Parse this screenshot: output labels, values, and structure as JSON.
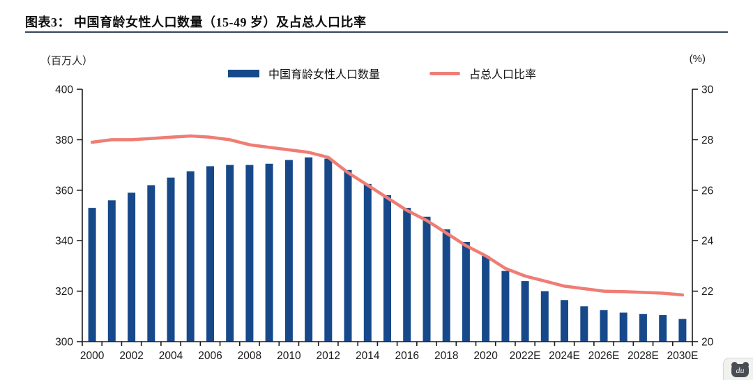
{
  "figure": {
    "title": "图表3：  中国育龄女性人口数量（15-49 岁）及占总人口比率",
    "left_unit": "（百万人）",
    "right_unit": "(%)",
    "watermark_text": "du"
  },
  "legend": {
    "bars": {
      "label": "中国育龄女性人口数量",
      "color": "#17498A"
    },
    "line": {
      "label": "占总人口比率",
      "color": "#EF7D74"
    }
  },
  "chart_data": {
    "type": "bar",
    "subtype": "bar+line dual-axis combo",
    "title": "中国育龄女性人口数量（15-49 岁）及占总人口比率",
    "categories": [
      "2000",
      "2001",
      "2002",
      "2003",
      "2004",
      "2005",
      "2006",
      "2007",
      "2008",
      "2009",
      "2010",
      "2011",
      "2012",
      "2013",
      "2014",
      "2015",
      "2016",
      "2017",
      "2018",
      "2019",
      "2020",
      "2021",
      "2022E",
      "2023E",
      "2024E",
      "2025E",
      "2026E",
      "2027E",
      "2028E",
      "2029E",
      "2030E"
    ],
    "xtick_every": 2,
    "series": [
      {
        "name": "中国育龄女性人口数量",
        "type": "bar",
        "axis": "left",
        "color": "#17498A",
        "values": [
          353,
          356,
          359,
          362,
          365,
          367.5,
          369.5,
          370,
          370,
          370.5,
          372,
          373,
          372.5,
          368,
          362.5,
          358,
          353,
          349.5,
          344.5,
          339.5,
          334,
          328,
          324,
          320,
          316.5,
          314,
          312.5,
          311.5,
          311,
          310.5,
          309
        ]
      },
      {
        "name": "占总人口比率",
        "type": "line",
        "axis": "right",
        "color": "#EF7D74",
        "values": [
          27.9,
          28.0,
          28.0,
          28.05,
          28.1,
          28.15,
          28.1,
          28.0,
          27.8,
          27.7,
          27.6,
          27.5,
          27.3,
          26.7,
          26.2,
          25.7,
          25.2,
          24.8,
          24.3,
          23.8,
          23.4,
          22.9,
          22.6,
          22.4,
          22.2,
          22.1,
          22.0,
          21.98,
          21.95,
          21.92,
          21.85
        ]
      }
    ],
    "left_axis": {
      "label": "（百万人）",
      "min": 300,
      "max": 400,
      "step": 20
    },
    "right_axis": {
      "label": "(%)",
      "min": 20,
      "max": 30,
      "step": 2
    },
    "grid": false,
    "legend_position": "top-center"
  }
}
